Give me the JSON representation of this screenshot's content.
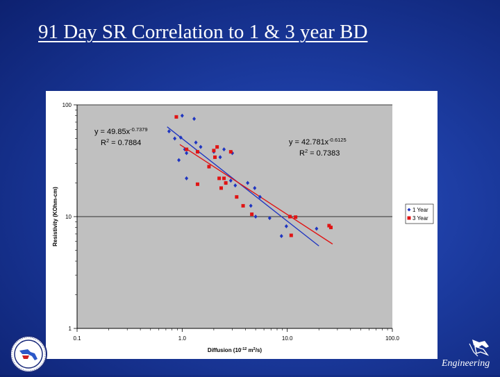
{
  "slide": {
    "title": "91 Day SR Correlation to 1 & 3 year BD"
  },
  "logos": {
    "left_icon": "state-seal-icon",
    "right_icon": "engineering-logo-icon",
    "right_text": "Engineering"
  },
  "colors": {
    "series_1": "#1f35c0",
    "series_2": "#e01414",
    "plot_bg": "#c0c0c0"
  },
  "chart_data": {
    "type": "scatter",
    "title": "",
    "xlabel": "Diffusion (10<sup>-12</sup> m<sup>2</sup>/s)",
    "xlabel_parts": [
      "Diffusion (10",
      "-12",
      " m",
      "2",
      "/s)"
    ],
    "ylabel": "Resistivity (KOhm-cm)",
    "x_scale": "log",
    "y_scale": "log",
    "xlim": [
      0.1,
      100
    ],
    "ylim": [
      1,
      100
    ],
    "x_ticks": [
      {
        "value": 0.1,
        "label": "0.1"
      },
      {
        "value": 1,
        "label": "1.0"
      },
      {
        "value": 10,
        "label": "10.0"
      },
      {
        "value": 100,
        "label": "100.0"
      }
    ],
    "y_ticks": [
      {
        "value": 1,
        "label": "1"
      },
      {
        "value": 10,
        "label": "10"
      },
      {
        "value": 100,
        "label": "100"
      }
    ],
    "grid": true,
    "legend_position": "right",
    "series": [
      {
        "name": "1 Year",
        "marker": "diamond",
        "points": [
          [
            0.75,
            58
          ],
          [
            0.85,
            50
          ],
          [
            0.93,
            32
          ],
          [
            0.97,
            51
          ],
          [
            1.0,
            80
          ],
          [
            1.06,
            40
          ],
          [
            1.1,
            37
          ],
          [
            1.1,
            22
          ],
          [
            1.3,
            75
          ],
          [
            1.35,
            46
          ],
          [
            1.5,
            42
          ],
          [
            1.8,
            28
          ],
          [
            2.0,
            38
          ],
          [
            2.3,
            34
          ],
          [
            2.5,
            40
          ],
          [
            2.6,
            20
          ],
          [
            2.9,
            21
          ],
          [
            3.0,
            37
          ],
          [
            3.2,
            19
          ],
          [
            4.2,
            20
          ],
          [
            4.5,
            12.5
          ],
          [
            4.9,
            18
          ],
          [
            5.0,
            10
          ],
          [
            5.5,
            15
          ],
          [
            6.8,
            9.7
          ],
          [
            8.8,
            6.7
          ],
          [
            9.8,
            8.2
          ],
          [
            10.5,
            10
          ],
          [
            19,
            7.8
          ]
        ],
        "trendline": {
          "equation": "y = 49.85x",
          "exponent": "-0.7379",
          "r2_label": "R",
          "r2_value": "2",
          "r2_text": " = 0.7884",
          "a": 49.85,
          "b": -0.7379,
          "x_range": [
            0.72,
            20
          ]
        }
      },
      {
        "name": "3 Year",
        "marker": "square",
        "points": [
          [
            0.88,
            78
          ],
          [
            1.1,
            40
          ],
          [
            1.4,
            38
          ],
          [
            1.4,
            19.5
          ],
          [
            1.8,
            28
          ],
          [
            2.0,
            39
          ],
          [
            2.05,
            34
          ],
          [
            2.15,
            42
          ],
          [
            2.25,
            22
          ],
          [
            2.35,
            18
          ],
          [
            2.5,
            22
          ],
          [
            2.6,
            20
          ],
          [
            2.9,
            38
          ],
          [
            3.3,
            15
          ],
          [
            3.8,
            12.5
          ],
          [
            4.6,
            10.5
          ],
          [
            10.6,
            10
          ],
          [
            10.9,
            6.8
          ],
          [
            12,
            9.9
          ],
          [
            25,
            8.3
          ],
          [
            26,
            8
          ]
        ],
        "trendline": {
          "equation": "y = 42.781x",
          "exponent": "-0.6125",
          "r2_label": "R",
          "r2_value": "2",
          "r2_text": " = 0.7383",
          "a": 42.781,
          "b": -0.6125,
          "x_range": [
            0.95,
            27
          ]
        }
      }
    ]
  }
}
